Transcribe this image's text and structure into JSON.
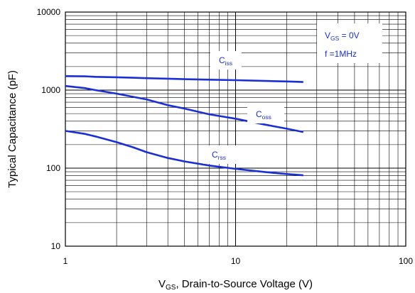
{
  "chart_data": {
    "type": "line",
    "xscale": "log",
    "yscale": "log",
    "xlim": [
      1,
      100
    ],
    "ylim": [
      10,
      10000
    ],
    "grid": true,
    "x_ticks": [
      "1",
      "10",
      "100"
    ],
    "y_ticks": [
      "10",
      "100",
      "1000",
      "10000"
    ],
    "xlabel": {
      "main": "V",
      "sub": "GS",
      "rest": ", Drain-to-Source Voltage (V)"
    },
    "ylabel": "Typical Capacitance (pF)",
    "legend_box": {
      "line1": {
        "main": "V",
        "sub": "GS",
        "rest": " = 0V"
      },
      "line2": "f =1MHz",
      "placement": "top-right"
    },
    "line_color": "#1a2fd6",
    "series": [
      {
        "name": "C",
        "name_sub": "iss",
        "x": [
          1,
          1.3,
          1.5,
          2,
          2.5,
          3,
          4,
          5,
          7,
          10,
          15,
          20,
          25
        ],
        "y": [
          1510,
          1500,
          1480,
          1460,
          1440,
          1420,
          1400,
          1380,
          1360,
          1340,
          1310,
          1290,
          1270
        ]
      },
      {
        "name": "C",
        "name_sub": "oss",
        "x": [
          1,
          1.3,
          1.5,
          2,
          2.5,
          3,
          4,
          5,
          7,
          10,
          15,
          20,
          25
        ],
        "y": [
          1130,
          1060,
          1000,
          900,
          820,
          760,
          640,
          580,
          490,
          430,
          360,
          320,
          290
        ]
      },
      {
        "name": "C",
        "name_sub": "rss",
        "x": [
          1,
          1.3,
          1.5,
          2,
          2.5,
          3,
          4,
          5,
          7,
          10,
          15,
          20,
          25
        ],
        "y": [
          300,
          275,
          255,
          215,
          185,
          160,
          135,
          122,
          108,
          98,
          89,
          84,
          81
        ]
      }
    ]
  }
}
